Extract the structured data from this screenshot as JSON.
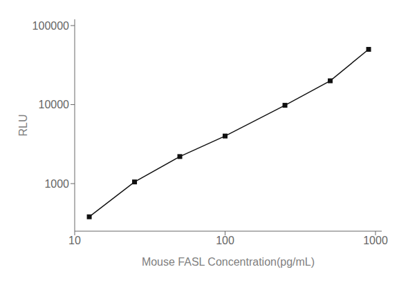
{
  "chart_data": {
    "type": "line",
    "x": [
      12.5,
      25,
      50,
      100,
      250,
      500,
      900
    ],
    "values": [
      380,
      1050,
      2200,
      4000,
      9800,
      20000,
      50000
    ],
    "xlabel": "Mouse FASL Concentration(pg/mL)",
    "ylabel": "RLU",
    "xlim": [
      10,
      1100
    ],
    "ylim": [
      250,
      120000
    ],
    "xticks": [
      10,
      100,
      1000
    ],
    "yticks": [
      1000,
      10000,
      100000
    ],
    "log": true,
    "grid": false,
    "color": "#111111",
    "marker": "square"
  }
}
